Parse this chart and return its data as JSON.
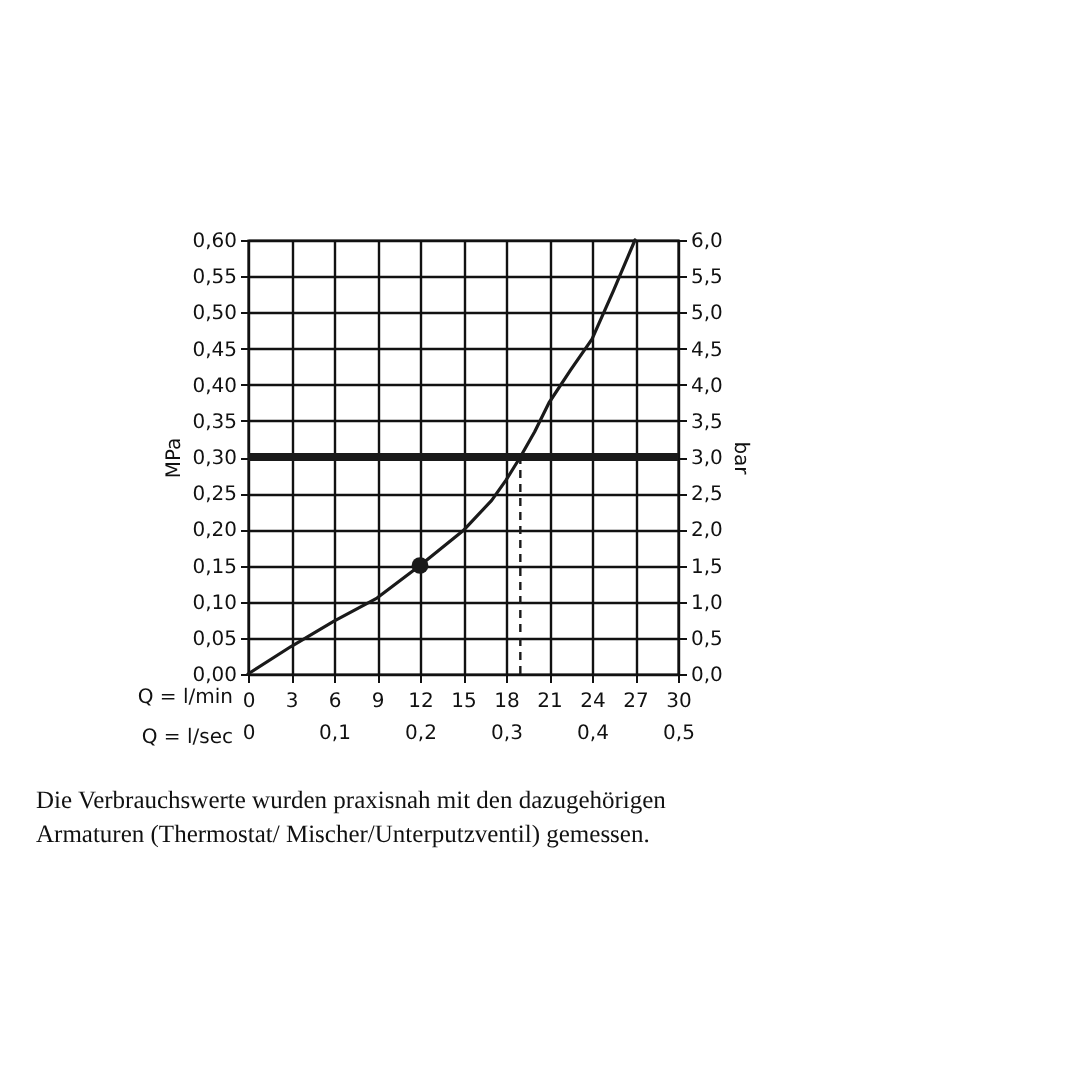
{
  "chart_data": {
    "type": "line",
    "xlabel": "Q = l/min",
    "x2label": "Q = l/sec",
    "ylabel": "MPa",
    "y2label": "bar",
    "series": [
      {
        "type": "line",
        "color": "#1a1a1a",
        "x": [
          0,
          3,
          6,
          9,
          12,
          15,
          17,
          18,
          19,
          20,
          21,
          22.5,
          24,
          25.5,
          27
        ],
        "values": [
          0,
          0.038,
          0.073,
          0.105,
          0.15,
          0.198,
          0.24,
          0.268,
          0.3,
          0.335,
          0.375,
          0.42,
          0.463,
          0.53,
          0.6
        ]
      },
      {
        "type": "scatter",
        "color": "#1a1a1a",
        "marker": "circle",
        "x": [
          12
        ],
        "values": [
          0.15
        ]
      }
    ],
    "xlim": [
      0,
      30
    ],
    "xticks": [
      0,
      3,
      6,
      9,
      12,
      15,
      18,
      21,
      24,
      27,
      30
    ],
    "x2lim": [
      0,
      0.5
    ],
    "x2ticks": [
      0,
      {
        "value": 0.1,
        "label": "0,1"
      },
      {
        "value": 0.2,
        "label": "0,2"
      },
      {
        "value": 0.3,
        "label": "0,3"
      },
      {
        "value": 0.4,
        "label": "0,4"
      },
      {
        "value": 0.5,
        "label": "0,5"
      }
    ],
    "ylim": [
      0,
      0.6
    ],
    "yticks": [
      {
        "value": 0,
        "label": "0,00"
      },
      {
        "value": 0.05,
        "label": "0,05"
      },
      {
        "value": 0.1,
        "label": "0,10"
      },
      {
        "value": 0.15,
        "label": "0,15"
      },
      {
        "value": 0.2,
        "label": "0,20"
      },
      {
        "value": 0.25,
        "label": "0,25"
      },
      {
        "value": 0.3,
        "label": "0,30"
      },
      {
        "value": 0.35,
        "label": "0,35"
      },
      {
        "value": 0.4,
        "label": "0,40"
      },
      {
        "value": 0.45,
        "label": "0,45"
      },
      {
        "value": 0.5,
        "label": "0,50"
      },
      {
        "value": 0.55,
        "label": "0,55"
      },
      {
        "value": 0.6,
        "label": "0,60"
      }
    ],
    "y2lim": [
      0,
      6
    ],
    "y2ticks": [
      {
        "value": 0,
        "label": "0,0"
      },
      {
        "value": 0.5,
        "label": "0,5"
      },
      {
        "value": 1,
        "label": "1,0"
      },
      {
        "value": 1.5,
        "label": "1,5"
      },
      {
        "value": 2,
        "label": "2,0"
      },
      {
        "value": 2.5,
        "label": "2,5"
      },
      {
        "value": 3,
        "label": "3,0"
      },
      {
        "value": 3.5,
        "label": "3,5"
      },
      {
        "value": 4,
        "label": "4,0"
      },
      {
        "value": 4.5,
        "label": "4,5"
      },
      {
        "value": 5,
        "label": "5,0"
      },
      {
        "value": 5.5,
        "label": "5,5"
      },
      {
        "value": 6,
        "label": "6,0"
      }
    ],
    "ref_lines": [
      {
        "axis": "y",
        "value": 0.3,
        "color": "#1a1a1a",
        "line_style": "solid"
      },
      {
        "axis": "x",
        "value": 19,
        "color": "#1a1a1a",
        "line_style": "dashed"
      }
    ],
    "grid": true,
    "annotations": [
      "Die Verbrauchswerte wurden praxisnah mit den dazugehörigen Armaturen (Thermostat/ Mischer/Unterputzventil) gemessen."
    ]
  }
}
